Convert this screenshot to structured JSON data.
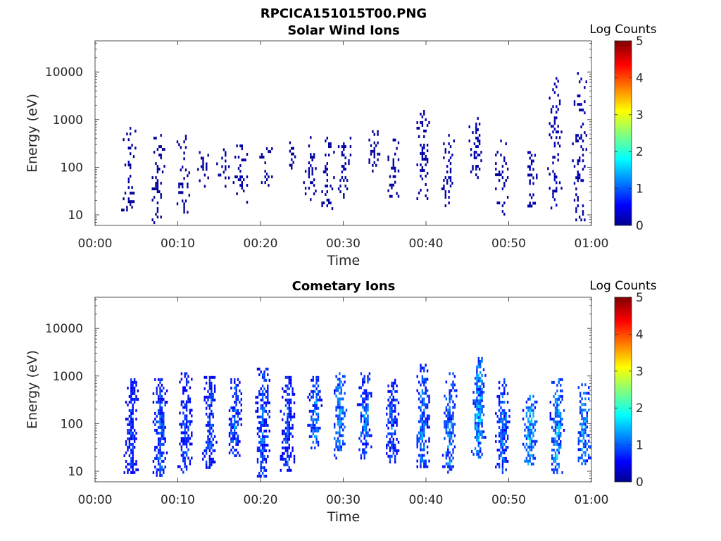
{
  "figure": {
    "suptitle": "RPCICA151015T00.PNG"
  },
  "chart_data": [
    {
      "type": "heatmap",
      "title": "Solar Wind Ions",
      "xlabel": "Time",
      "ylabel": "Energy (eV)",
      "x_ticks": [
        "00:00",
        "00:10",
        "00:20",
        "00:30",
        "00:40",
        "00:50",
        "01:00"
      ],
      "x_range_minutes": [
        0,
        60
      ],
      "y_scale": "log",
      "y_ticks": [
        "10",
        "100",
        "1000",
        "10000"
      ],
      "y_range_eV": [
        6,
        45000
      ],
      "colorbar": {
        "label": "Log Counts",
        "ticks": [
          "0",
          "1",
          "2",
          "3",
          "4",
          "5"
        ],
        "range": [
          0,
          5
        ],
        "colormap": "jet"
      },
      "bursts": [
        {
          "t": 4.0,
          "e_lo": 12,
          "e_hi": 700,
          "level": 0.2
        },
        {
          "t": 7.5,
          "e_lo": 7,
          "e_hi": 500,
          "level": 0.2
        },
        {
          "t": 10.5,
          "e_lo": 12,
          "e_hi": 550,
          "level": 0.2
        },
        {
          "t": 13.0,
          "e_lo": 40,
          "e_hi": 250,
          "level": 0.2
        },
        {
          "t": 15.5,
          "e_lo": 40,
          "e_hi": 250,
          "level": 0.2
        },
        {
          "t": 17.5,
          "e_lo": 18,
          "e_hi": 300,
          "level": 0.25
        },
        {
          "t": 20.5,
          "e_lo": 40,
          "e_hi": 300,
          "level": 0.2
        },
        {
          "t": 23.5,
          "e_lo": 90,
          "e_hi": 350,
          "level": 0.2
        },
        {
          "t": 26.0,
          "e_lo": 20,
          "e_hi": 450,
          "level": 0.25
        },
        {
          "t": 28.0,
          "e_lo": 12,
          "e_hi": 500,
          "level": 0.25
        },
        {
          "t": 30.0,
          "e_lo": 18,
          "e_hi": 500,
          "level": 0.25
        },
        {
          "t": 33.5,
          "e_lo": 80,
          "e_hi": 600,
          "level": 0.2
        },
        {
          "t": 36.0,
          "e_lo": 25,
          "e_hi": 400,
          "level": 0.2
        },
        {
          "t": 39.5,
          "e_lo": 20,
          "e_hi": 1600,
          "level": 0.25
        },
        {
          "t": 42.5,
          "e_lo": 15,
          "e_hi": 500,
          "level": 0.25
        },
        {
          "t": 46.0,
          "e_lo": 60,
          "e_hi": 1300,
          "level": 0.3
        },
        {
          "t": 49.0,
          "e_lo": 10,
          "e_hi": 500,
          "level": 0.25
        },
        {
          "t": 52.5,
          "e_lo": 15,
          "e_hi": 250,
          "level": 0.3
        },
        {
          "t": 55.5,
          "e_lo": 10,
          "e_hi": 9000,
          "level": 0.3
        },
        {
          "t": 58.5,
          "e_lo": 7,
          "e_hi": 10000,
          "level": 0.3
        }
      ]
    },
    {
      "type": "heatmap",
      "title": "Cometary Ions",
      "xlabel": "Time",
      "ylabel": "Energy (eV)",
      "x_ticks": [
        "00:00",
        "00:10",
        "00:20",
        "00:30",
        "00:40",
        "00:50",
        "01:00"
      ],
      "x_range_minutes": [
        0,
        60
      ],
      "y_scale": "log",
      "y_ticks": [
        "10",
        "100",
        "1000",
        "10000"
      ],
      "y_range_eV": [
        6,
        45000
      ],
      "colorbar": {
        "label": "Log Counts",
        "ticks": [
          "0",
          "1",
          "2",
          "3",
          "4",
          "5"
        ],
        "range": [
          0,
          5
        ],
        "colormap": "jet"
      },
      "bursts": [
        {
          "t": 4.3,
          "e_lo": 10,
          "e_hi": 900,
          "level": 1.0
        },
        {
          "t": 7.8,
          "e_lo": 8,
          "e_hi": 900,
          "level": 1.2
        },
        {
          "t": 10.8,
          "e_lo": 10,
          "e_hi": 1200,
          "level": 1.1
        },
        {
          "t": 13.8,
          "e_lo": 12,
          "e_hi": 1000,
          "level": 1.1
        },
        {
          "t": 16.8,
          "e_lo": 20,
          "e_hi": 900,
          "level": 1.2
        },
        {
          "t": 20.2,
          "e_lo": 8,
          "e_hi": 1500,
          "level": 1.2
        },
        {
          "t": 23.2,
          "e_lo": 10,
          "e_hi": 1000,
          "level": 1.1
        },
        {
          "t": 26.5,
          "e_lo": 30,
          "e_hi": 1000,
          "level": 1.4
        },
        {
          "t": 29.5,
          "e_lo": 20,
          "e_hi": 1200,
          "level": 1.5
        },
        {
          "t": 32.5,
          "e_lo": 20,
          "e_hi": 1200,
          "level": 1.3
        },
        {
          "t": 35.8,
          "e_lo": 15,
          "e_hi": 1000,
          "level": 1.2
        },
        {
          "t": 39.5,
          "e_lo": 12,
          "e_hi": 1800,
          "level": 1.3
        },
        {
          "t": 42.8,
          "e_lo": 10,
          "e_hi": 1200,
          "level": 1.4
        },
        {
          "t": 46.3,
          "e_lo": 20,
          "e_hi": 2500,
          "level": 1.6
        },
        {
          "t": 49.2,
          "e_lo": 10,
          "e_hi": 900,
          "level": 1.3
        },
        {
          "t": 52.5,
          "e_lo": 15,
          "e_hi": 400,
          "level": 1.7
        },
        {
          "t": 55.8,
          "e_lo": 10,
          "e_hi": 900,
          "level": 1.6
        },
        {
          "t": 59.0,
          "e_lo": 15,
          "e_hi": 700,
          "level": 1.6
        }
      ]
    }
  ]
}
